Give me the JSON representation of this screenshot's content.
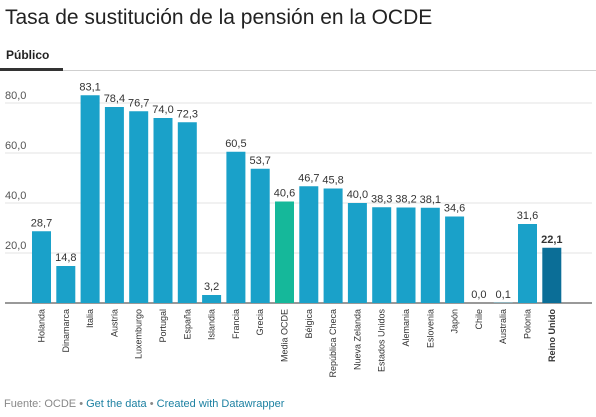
{
  "title": "Tasa de sustitución de la pensión en la OCDE",
  "tab": {
    "label": "Público"
  },
  "footer": {
    "source": "Fuente: OCDE",
    "sep1": " • ",
    "link1": "Get the data",
    "sep2": " • ",
    "link2": "Created with Datawrapper"
  },
  "colors": {
    "default": "#1aa1c9",
    "highlight_avg": "#15b89a",
    "highlight_uk": "#0b6e97",
    "grid": "#e3e3e3"
  },
  "chart_data": {
    "type": "bar",
    "categories": [
      "Holanda",
      "Dinamarca",
      "Italia",
      "Austria",
      "Luxemburgo",
      "Portugal",
      "España",
      "Islandia",
      "Francia",
      "Grecia",
      "Media OCDE",
      "Bélgica",
      "República Checa",
      "Nueva Zelanda",
      "Estados Unidos",
      "Alemania",
      "Eslovenia",
      "Japón",
      "Chile",
      "Australia",
      "Polonia",
      "Reino Unido"
    ],
    "values": [
      28.7,
      14.8,
      83.1,
      78.4,
      76.7,
      74.0,
      72.3,
      3.2,
      60.5,
      53.7,
      40.6,
      46.7,
      45.8,
      40.0,
      38.3,
      38.2,
      38.1,
      34.6,
      0.0,
      0.1,
      31.6,
      22.1
    ],
    "value_labels": [
      "28,7",
      "14,8",
      "83,1",
      "78,4",
      "76,7",
      "74,0",
      "72,3",
      "3,2",
      "60,5",
      "53,7",
      "40,6",
      "46,7",
      "45,8",
      "40,0",
      "38,3",
      "38,2",
      "38,1",
      "34,6",
      "0,0",
      "0,1",
      "31,6",
      "22,1"
    ],
    "highlight": {
      "Media OCDE": "avg",
      "Reino Unido": "uk"
    },
    "bold_labels": [
      "Reino Unido"
    ],
    "yticks": [
      20,
      40,
      60,
      80
    ],
    "ytick_labels": [
      "20,0",
      "40,0",
      "60,0",
      "80,0"
    ],
    "ylim": [
      0,
      90
    ],
    "grid": true
  }
}
